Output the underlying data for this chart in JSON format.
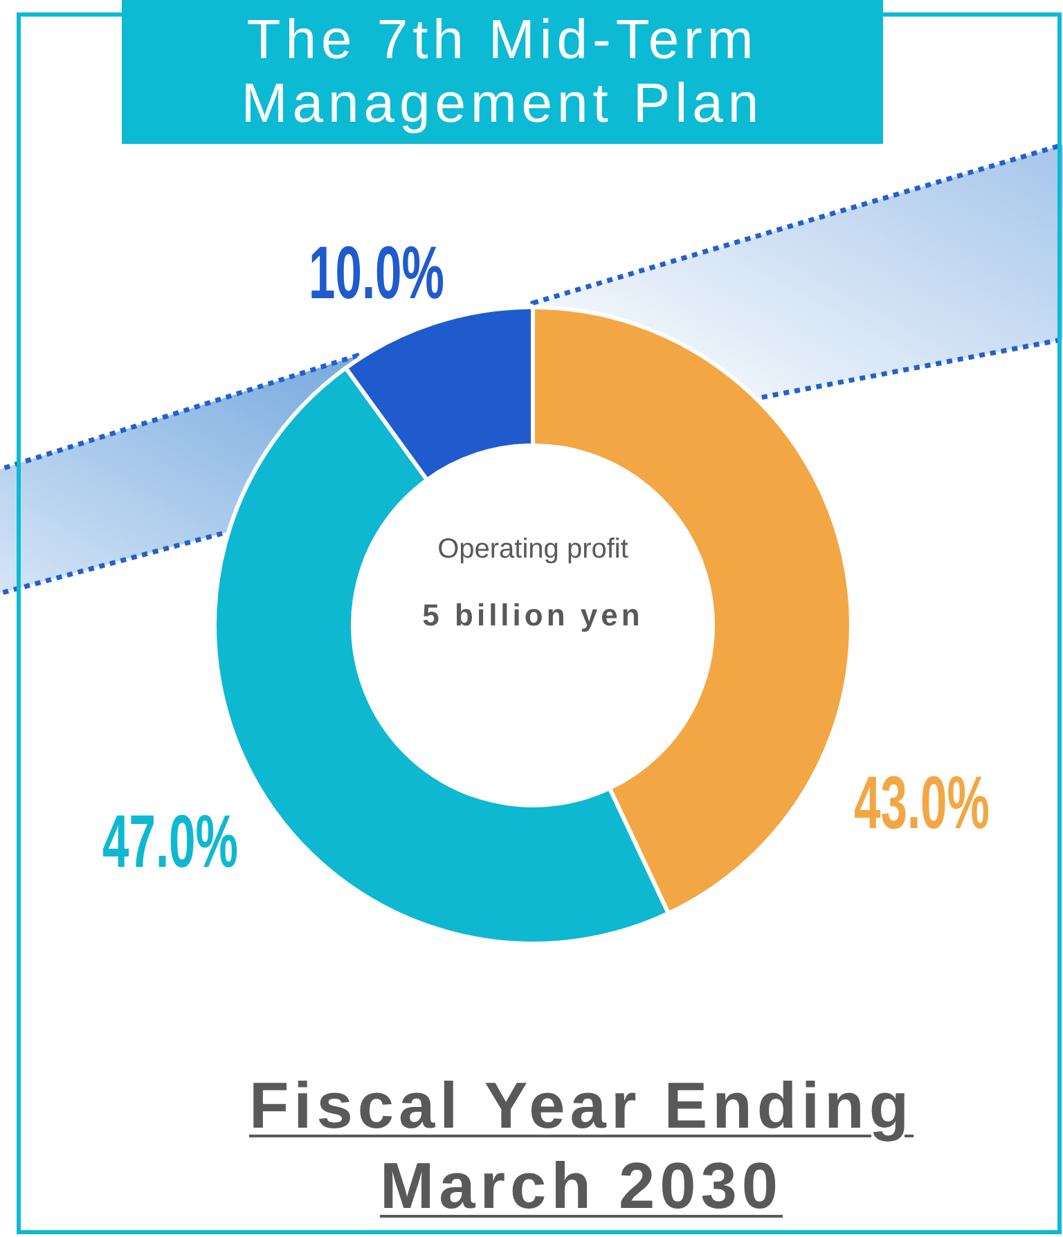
{
  "chart_data": {
    "type": "donut",
    "title": "The 7th Mid-Term Management Plan",
    "categories": [
      null,
      null,
      null
    ],
    "values": [
      43.0,
      47.0,
      10.0
    ],
    "colors": [
      "#f2a744",
      "#0eb8d1",
      "#1f5bcd"
    ],
    "value_labels": [
      "43.0%",
      "47.0%",
      "10.0%"
    ],
    "annotations": [
      "Operating profit",
      "5 billion yen",
      "Fiscal Year Ending March 2030"
    ]
  }
}
